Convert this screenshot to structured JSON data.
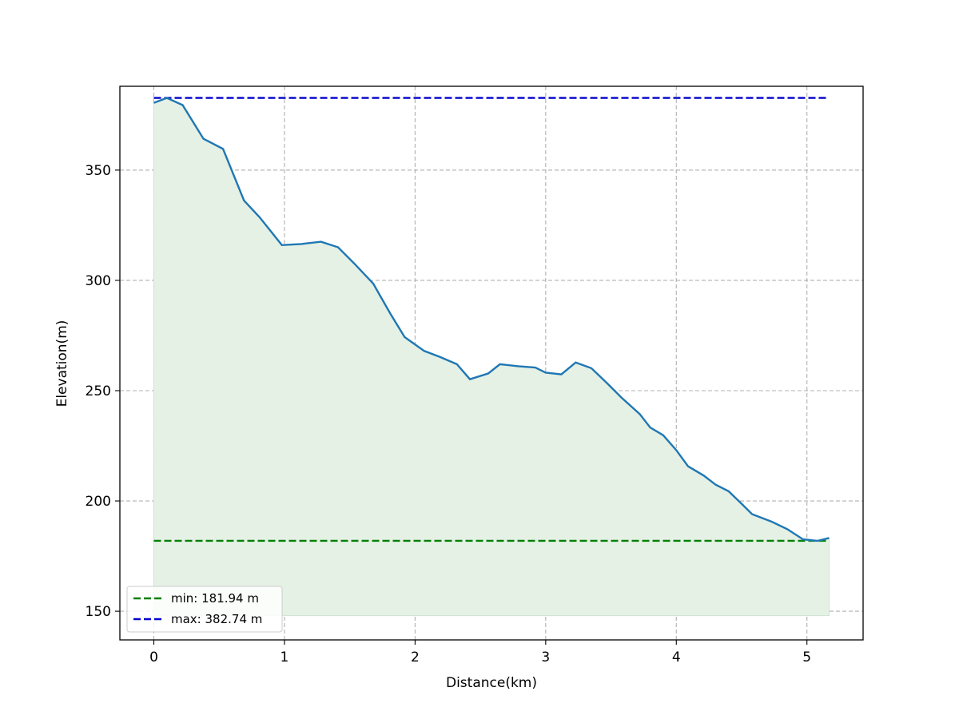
{
  "chart_data": {
    "type": "area",
    "title": "",
    "xlabel": "Distance(km)",
    "ylabel": "Elevation(m)",
    "xlim": [
      -0.26,
      5.43
    ],
    "ylim": [
      137,
      388
    ],
    "grid": true,
    "legend_position": "lower-left",
    "x_ticks": [
      0,
      1,
      2,
      3,
      4,
      5
    ],
    "y_ticks": [
      150,
      200,
      250,
      300,
      350
    ],
    "fill_baseline": 148,
    "colors": {
      "profile_line": "#1f77b4",
      "fill": "#e5f1e5",
      "min_line": "#008000",
      "max_line": "#0000cc",
      "grid": "#b0b0b0"
    },
    "series": [
      {
        "x": [
          0,
          0.1,
          0.22,
          0.38,
          0.53,
          0.69,
          0.81,
          0.98,
          1.13,
          1.28,
          1.41,
          1.54,
          1.68,
          1.81,
          1.92,
          2.07,
          2.19,
          2.32,
          2.42,
          2.56,
          2.65,
          2.79,
          2.92,
          3.0,
          3.12,
          3.23,
          3.35,
          3.47,
          3.58,
          3.72,
          3.8,
          3.9,
          4.0,
          4.09,
          4.21,
          4.3,
          4.4,
          4.5,
          4.58,
          4.73,
          4.85,
          4.97,
          5.08,
          5.17
        ],
        "y": [
          380.5,
          382.7,
          379.5,
          364.2,
          359.6,
          336.2,
          328.6,
          316.0,
          316.5,
          317.5,
          315.0,
          307.3,
          298.5,
          285.0,
          274.3,
          268.0,
          265.3,
          262.0,
          255.2,
          257.8,
          262.0,
          261.1,
          260.5,
          258.2,
          257.4,
          262.8,
          260.2,
          253.4,
          246.9,
          239.4,
          233.3,
          229.8,
          223.0,
          215.7,
          211.5,
          207.4,
          204.4,
          198.7,
          194.0,
          190.6,
          187.2,
          182.6,
          181.9,
          183.2
        ]
      }
    ],
    "reference_lines": [
      {
        "name": "min: 181.94 m",
        "y": 181.94,
        "x_range": [
          0,
          5.17
        ],
        "color": "#008000"
      },
      {
        "name": "max: 382.74 m",
        "y": 382.74,
        "x_range": [
          0,
          5.17
        ],
        "color": "#0000cc"
      }
    ]
  }
}
